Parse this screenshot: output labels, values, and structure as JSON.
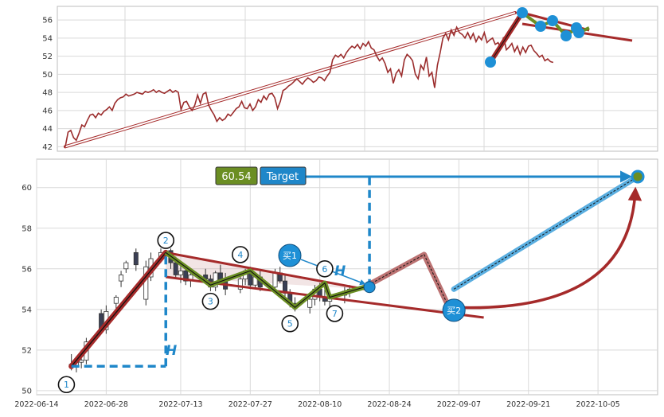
{
  "colors": {
    "grid": "#d9d9d9",
    "frame": "#bdbdbd",
    "price_line": "#9b2d2d",
    "trend_red": "#a52a2a",
    "zigzag_green": "#6b8e23",
    "marker_blue": "#1e90d6",
    "dash_blue": "#1f87c9",
    "path_blue_band": "#5aaee0",
    "path_red_band": "#b05a5a",
    "target_value_bg": "#6b8e23",
    "target_label_bg": "#1f87c9"
  },
  "labels": {
    "target_value": "60.54",
    "target_text": "Target",
    "buy1": "买1",
    "buy2": "买2",
    "h_left": "H",
    "h_right": "H",
    "wave_numbers": [
      "1",
      "2",
      "3",
      "4",
      "5",
      "6",
      "7"
    ]
  },
  "chart_data": [
    {
      "type": "line",
      "panel": "top",
      "title": "",
      "xlabel": "",
      "ylabel": "",
      "ylim": [
        41.5,
        57.5
      ],
      "yticks": [
        42,
        44,
        46,
        48,
        50,
        52,
        54,
        56
      ],
      "grid": true,
      "x_index_range": [
        0,
        212
      ],
      "series": [
        {
          "values": [
            42.0,
            43.6,
            43.8,
            43.0,
            42.7,
            43.5,
            44.4,
            44.2,
            44.9,
            45.5,
            45.6,
            45.2,
            45.7,
            45.5,
            45.9,
            46.1,
            46.4,
            46.0,
            46.8,
            47.2,
            47.4,
            47.5,
            47.8,
            47.6,
            47.7,
            47.8,
            48.0,
            47.9,
            47.8,
            48.1,
            48.0,
            48.1,
            48.3,
            48.0,
            48.2,
            48.0,
            47.9,
            48.1,
            48.3,
            48.0,
            48.2,
            48.0,
            46.1,
            46.9,
            47.0,
            46.4,
            46.0,
            46.6,
            47.7,
            46.8,
            47.8,
            48.0,
            46.6,
            46.0,
            45.5,
            44.8,
            45.2,
            44.9,
            45.1,
            45.6,
            45.4,
            45.8,
            46.2,
            46.4,
            47.0,
            46.3,
            46.2,
            46.7,
            46.0,
            46.4,
            47.2,
            46.9,
            47.6,
            47.2,
            47.8,
            47.9,
            47.4,
            46.2,
            47.0,
            48.2,
            48.4,
            48.7,
            48.9,
            49.2,
            49.5,
            49.2,
            48.9,
            49.3,
            49.6,
            49.4,
            49.1,
            49.3,
            49.7,
            49.6,
            49.3,
            49.8,
            50.2,
            51.6,
            52.1,
            51.9,
            52.2,
            51.8,
            52.4,
            52.8,
            53.1,
            52.9,
            53.3,
            52.8,
            53.4,
            53.1,
            53.6,
            52.9,
            52.7,
            52.0,
            51.5,
            51.8,
            51.2,
            50.2,
            50.6,
            49.0,
            50.1,
            50.5,
            49.8,
            51.6,
            52.2,
            51.9,
            51.5,
            50.0,
            49.5,
            51.0,
            50.5,
            51.9,
            49.8,
            50.2,
            48.5,
            51.0,
            52.4,
            54.0,
            54.5,
            53.8,
            54.9,
            54.3,
            55.2,
            54.6,
            54.4,
            54.0,
            54.6,
            53.9,
            54.5,
            53.6,
            54.2,
            53.8,
            54.6,
            53.5,
            53.8,
            54.0,
            53.3,
            53.5,
            52.9,
            54.1,
            52.7,
            53.0,
            53.4,
            52.5,
            53.1,
            52.2,
            53.0,
            52.4,
            53.1,
            53.2,
            52.6,
            52.3,
            51.9,
            52.1,
            51.5,
            51.7,
            51.4,
            51.3
          ]
        }
      ]
    },
    {
      "type": "candlestick",
      "panel": "bottom",
      "title": "",
      "xlabel": "",
      "ylabel": "",
      "ylim": [
        49.8,
        61.4
      ],
      "yticks": [
        50,
        52,
        54,
        56,
        58,
        60
      ],
      "xlim": [
        "2022-06-14",
        "2022-10-17"
      ],
      "x_tick_labels": [
        "2022-06-14",
        "2022-06-28",
        "2022-07-13",
        "2022-07-27",
        "2022-08-10",
        "2022-08-24",
        "2022-09-07",
        "2022-09-21",
        "2022-10-05"
      ],
      "grid": true,
      "candles": [
        {
          "date": "2022-06-21",
          "o": 51.3,
          "h": 51.8,
          "l": 51.0,
          "c": 51.2
        },
        {
          "date": "2022-06-22",
          "o": 51.2,
          "h": 51.6,
          "l": 50.9,
          "c": 51.4
        },
        {
          "date": "2022-06-23",
          "o": 51.4,
          "h": 52.0,
          "l": 51.1,
          "c": 51.5
        },
        {
          "date": "2022-06-24",
          "o": 51.5,
          "h": 52.6,
          "l": 51.3,
          "c": 52.4
        },
        {
          "date": "2022-06-27",
          "o": 53.8,
          "h": 54.0,
          "l": 52.9,
          "c": 53.0
        },
        {
          "date": "2022-06-28",
          "o": 53.0,
          "h": 54.2,
          "l": 52.8,
          "c": 53.9
        },
        {
          "date": "2022-06-30",
          "o": 54.3,
          "h": 54.7,
          "l": 54.0,
          "c": 54.6
        },
        {
          "date": "2022-07-01",
          "o": 55.4,
          "h": 55.9,
          "l": 55.1,
          "c": 55.7
        },
        {
          "date": "2022-07-02",
          "o": 56.0,
          "h": 56.4,
          "l": 55.8,
          "c": 56.3
        },
        {
          "date": "2022-07-04",
          "o": 56.8,
          "h": 57.0,
          "l": 55.9,
          "c": 56.2
        },
        {
          "date": "2022-07-06",
          "o": 54.5,
          "h": 56.4,
          "l": 54.2,
          "c": 56.1
        },
        {
          "date": "2022-07-07",
          "o": 55.6,
          "h": 56.8,
          "l": 55.4,
          "c": 56.5
        },
        {
          "date": "2022-07-09",
          "o": 56.5,
          "h": 57.0,
          "l": 56.3,
          "c": 56.8
        },
        {
          "date": "2022-07-11",
          "o": 56.9,
          "h": 57.0,
          "l": 56.0,
          "c": 56.3
        },
        {
          "date": "2022-07-12",
          "o": 56.3,
          "h": 56.6,
          "l": 55.5,
          "c": 55.7
        },
        {
          "date": "2022-07-13",
          "o": 55.7,
          "h": 56.2,
          "l": 55.3,
          "c": 55.9
        },
        {
          "date": "2022-07-14",
          "o": 55.9,
          "h": 56.1,
          "l": 55.2,
          "c": 55.4
        },
        {
          "date": "2022-07-15",
          "o": 55.4,
          "h": 55.9,
          "l": 55.1,
          "c": 55.7
        },
        {
          "date": "2022-07-18",
          "o": 55.7,
          "h": 56.0,
          "l": 55.3,
          "c": 55.5
        },
        {
          "date": "2022-07-19",
          "o": 55.5,
          "h": 55.7,
          "l": 54.9,
          "c": 55.1
        },
        {
          "date": "2022-07-20",
          "o": 55.1,
          "h": 55.9,
          "l": 54.9,
          "c": 55.8
        },
        {
          "date": "2022-07-21",
          "o": 55.8,
          "h": 56.2,
          "l": 55.2,
          "c": 55.4
        },
        {
          "date": "2022-07-22",
          "o": 55.4,
          "h": 55.8,
          "l": 54.7,
          "c": 55.0
        },
        {
          "date": "2022-07-25",
          "o": 55.0,
          "h": 55.6,
          "l": 54.8,
          "c": 55.5
        },
        {
          "date": "2022-07-26",
          "o": 55.5,
          "h": 56.0,
          "l": 55.2,
          "c": 55.9
        },
        {
          "date": "2022-07-27",
          "o": 55.9,
          "h": 56.1,
          "l": 55.0,
          "c": 55.2
        },
        {
          "date": "2022-07-28",
          "o": 55.2,
          "h": 55.8,
          "l": 55.0,
          "c": 55.6
        },
        {
          "date": "2022-07-29",
          "o": 55.6,
          "h": 55.9,
          "l": 54.9,
          "c": 55.1
        },
        {
          "date": "2022-08-01",
          "o": 55.1,
          "h": 56.0,
          "l": 54.9,
          "c": 55.8
        },
        {
          "date": "2022-08-02",
          "o": 55.8,
          "h": 56.1,
          "l": 55.3,
          "c": 55.4
        },
        {
          "date": "2022-08-03",
          "o": 55.4,
          "h": 55.7,
          "l": 54.6,
          "c": 54.8
        },
        {
          "date": "2022-08-04",
          "o": 54.8,
          "h": 55.0,
          "l": 54.1,
          "c": 54.3
        },
        {
          "date": "2022-08-05",
          "o": 54.3,
          "h": 54.6,
          "l": 53.9,
          "c": 54.1
        },
        {
          "date": "2022-08-08",
          "o": 54.1,
          "h": 54.7,
          "l": 53.8,
          "c": 54.5
        },
        {
          "date": "2022-08-09",
          "o": 54.5,
          "h": 55.2,
          "l": 54.2,
          "c": 55.0
        },
        {
          "date": "2022-08-10",
          "o": 55.0,
          "h": 55.3,
          "l": 54.4,
          "c": 54.6
        },
        {
          "date": "2022-08-11",
          "o": 54.6,
          "h": 55.0,
          "l": 54.2,
          "c": 54.4
        },
        {
          "date": "2022-08-12",
          "o": 54.4,
          "h": 54.8,
          "l": 54.1,
          "c": 54.7
        },
        {
          "date": "2022-08-15",
          "o": 54.7,
          "h": 55.1,
          "l": 54.3,
          "c": 54.9
        },
        {
          "date": "2022-08-16",
          "o": 54.9,
          "h": 55.2,
          "l": 54.6,
          "c": 55.0
        }
      ],
      "overlays": {
        "trend_line_1": [
          [
            "2022-06-21",
            51.2
          ],
          [
            "2022-07-10",
            56.8
          ]
        ],
        "zigzag": [
          [
            "2022-07-10",
            56.8
          ],
          [
            "2022-07-19",
            55.2
          ],
          [
            "2022-07-27",
            55.9
          ],
          [
            "2022-08-05",
            54.1
          ],
          [
            "2022-08-11",
            55.3
          ],
          [
            "2022-08-12",
            54.6
          ],
          [
            "2022-08-19",
            55.1
          ]
        ],
        "upper_boundary": [
          [
            "2022-07-10",
            56.8
          ],
          [
            "2022-08-19",
            55.0
          ]
        ],
        "lower_boundary": [
          [
            "2022-07-10",
            55.6
          ],
          [
            "2022-09-12",
            53.6
          ]
        ],
        "projected_up_path": [
          [
            "2022-08-19",
            55.1
          ],
          [
            "2022-08-31",
            56.7
          ],
          [
            "2022-09-05",
            54.1
          ]
        ],
        "projected_target_path": [
          [
            "2022-09-06",
            55.0
          ],
          [
            "2022-10-13",
            60.54
          ]
        ],
        "target_arrow_curve": [
          [
            "2022-09-06",
            54.1
          ],
          [
            "2022-10-13",
            60.3
          ]
        ],
        "target_horizontal": [
          [
            "2022-08-12",
            60.54
          ],
          [
            "2022-10-13",
            60.54
          ]
        ],
        "h_vertical_left": [
          [
            "2022-07-10",
            51.2
          ],
          [
            "2022-07-10",
            56.8
          ]
        ],
        "h_horizontal_left": [
          [
            "2022-06-21",
            51.2
          ],
          [
            "2022-07-10",
            51.2
          ]
        ],
        "h_vertical_right": [
          [
            "2022-08-20",
            55.1
          ],
          [
            "2022-08-20",
            60.54
          ]
        ],
        "buy1_point": [
          "2022-08-20",
          55.1
        ],
        "buy2_point": [
          "2022-09-06",
          54.0
        ],
        "target_point": [
          "2022-10-13",
          60.54
        ],
        "wave_points": [
          [
            "2022-06-20",
            50.3
          ],
          [
            "2022-07-10",
            57.4
          ],
          [
            "2022-07-19",
            54.4
          ],
          [
            "2022-07-25",
            56.7
          ],
          [
            "2022-08-04",
            53.3
          ],
          [
            "2022-08-11",
            56.0
          ],
          [
            "2022-08-13",
            53.8
          ]
        ]
      }
    }
  ]
}
